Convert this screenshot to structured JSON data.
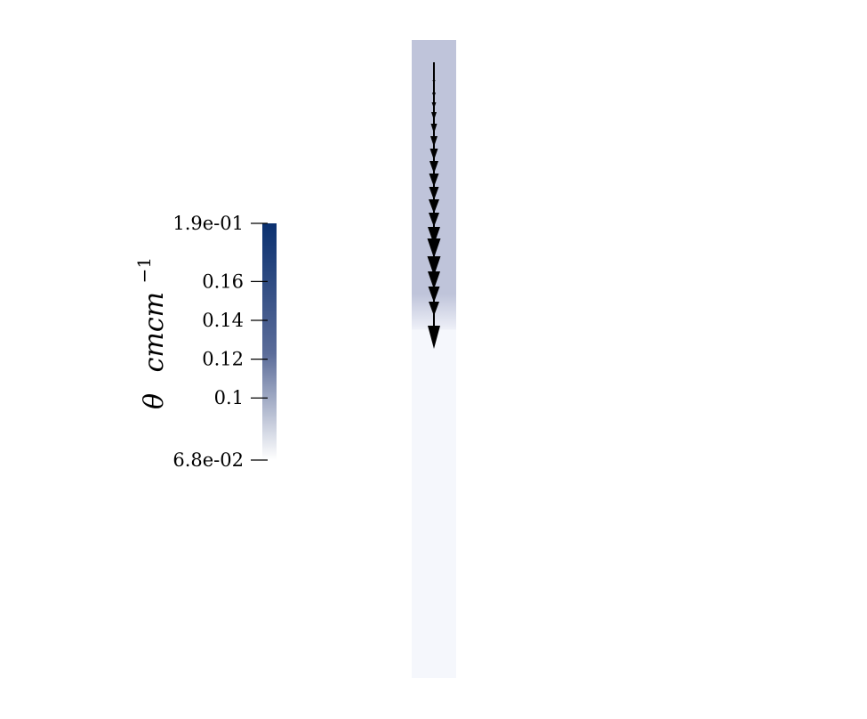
{
  "colorbar": {
    "title_symbol": "θ",
    "title_units": "cmcm",
    "title_exponent": "−1",
    "max_label": "1.9e-01",
    "min_label": "6.8e-02",
    "range": [
      0.068,
      0.19
    ],
    "ticks": [
      {
        "value": 0.19,
        "label": "1.9e-01"
      },
      {
        "value": 0.16,
        "label": "0.16"
      },
      {
        "value": 0.14,
        "label": "0.14"
      },
      {
        "value": 0.12,
        "label": "0.12"
      },
      {
        "value": 0.1,
        "label": "0.1"
      },
      {
        "value": 0.068,
        "label": "6.8e-02"
      }
    ],
    "color_high": "#0b3170",
    "color_low": "#ffffff"
  },
  "column": {
    "wet_color": "#bfc4da",
    "dry_color": "#f5f7fc",
    "wet_fraction": 0.44,
    "arrow_color": "#000000"
  }
}
